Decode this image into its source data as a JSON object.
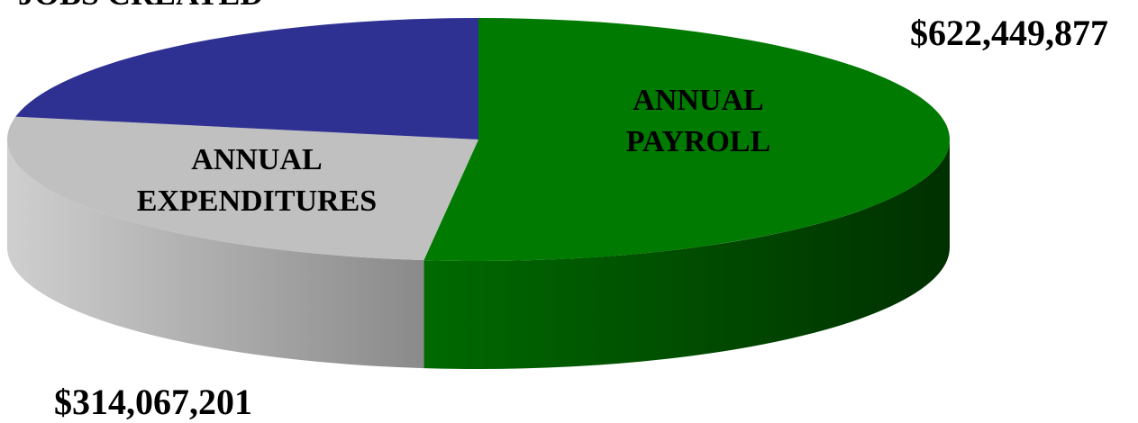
{
  "chart_data": {
    "type": "pie3d",
    "categories": [
      "ANNUAL PAYROLL",
      "ANNUAL EXPENDITURES",
      "JOBS CREATED"
    ],
    "values": [
      622449877,
      314067201,
      264000000
    ],
    "value_labels": [
      "$622,449,877",
      "$314,067,201",
      null
    ],
    "colors": [
      "#007a00",
      "#c0c0c0",
      "#2e3192"
    ]
  }
}
